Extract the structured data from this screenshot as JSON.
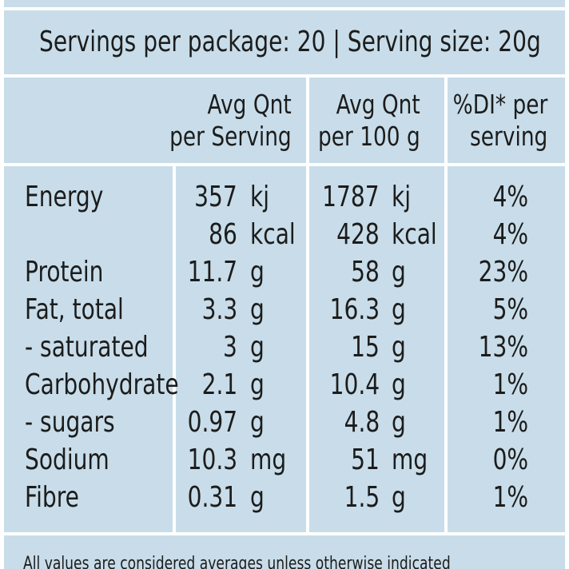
{
  "servings_line": "Servings per package: 20 | Serving size: 20g",
  "columns": [
    {
      "line1": "Avg Qnt",
      "line2": "per Serving"
    },
    {
      "line1": "Avg Qnt",
      "line2": "per 100 g"
    },
    {
      "line1": "%DI* per",
      "line2": "serving"
    }
  ],
  "rows": [
    {
      "label": "Energy",
      "serving": "357",
      "serving_unit": "kj",
      "per100": "1787",
      "per100_unit": "kj",
      "di": "4%"
    },
    {
      "label": "",
      "serving": "86",
      "serving_unit": "kcal",
      "per100": "428",
      "per100_unit": "kcal",
      "di": "4%"
    },
    {
      "label": "Protein",
      "serving": "11.7",
      "serving_unit": "g",
      "per100": "58",
      "per100_unit": "g",
      "di": "23%"
    },
    {
      "label": "Fat, total",
      "serving": "3.3",
      "serving_unit": "g",
      "per100": "16.3",
      "per100_unit": "g",
      "di": "5%"
    },
    {
      "label": "- saturated",
      "serving": "3",
      "serving_unit": "g",
      "per100": "15",
      "per100_unit": "g",
      "di": "13%"
    },
    {
      "label": "Carbohydrate",
      "serving": "2.1",
      "serving_unit": "g",
      "per100": "10.4",
      "per100_unit": "g",
      "di": "1%"
    },
    {
      "label": "- sugars",
      "serving": "0.97",
      "serving_unit": "g",
      "per100": "4.8",
      "per100_unit": "g",
      "di": "1%"
    },
    {
      "label": "Sodium",
      "serving": "10.3",
      "serving_unit": "mg",
      "per100": "51",
      "per100_unit": "mg",
      "di": "0%"
    },
    {
      "label": "Fibre",
      "serving": "0.31",
      "serving_unit": "g",
      "per100": "1.5",
      "per100_unit": "g",
      "di": "1%"
    }
  ],
  "footnote": "All values are considered averages unless otherwise indicated",
  "colors": {
    "panel": "#c8dde9",
    "grid": "#ffffff",
    "text": "#1c1c1c"
  }
}
